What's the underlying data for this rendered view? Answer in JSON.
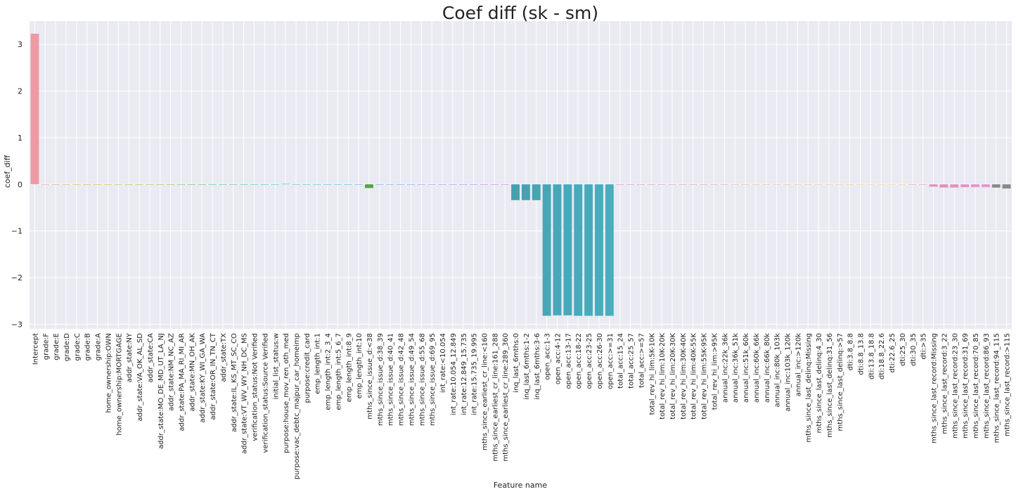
{
  "chart_data": {
    "type": "bar",
    "title": "Coef diff (sk - sm)",
    "xlabel": "Feature name",
    "ylabel": "coef_diff",
    "ylim": [
      -3.1,
      3.5
    ],
    "yticks": [
      -3,
      -2,
      -1,
      0,
      1,
      2,
      3
    ],
    "ytick_labels": [
      "−3",
      "−2",
      "−1",
      "0",
      "1",
      "2",
      "3"
    ],
    "grid": true,
    "legend": "none",
    "background": "#eaeaf2",
    "categories": [
      "Intercept",
      "grade:F",
      "grade:E",
      "grade:D",
      "grade:C",
      "grade:B",
      "grade:A",
      "home_ownership:OWN",
      "home_ownership:MORTGAGE",
      "addr_state:NY",
      "addr_state:VA_OK_AL_SD",
      "addr_state:CA",
      "addr_state:MO_DE_MD_UT_LA_NJ",
      "addr_state:NM_NC_AZ",
      "addr_state:PA_MA_RI_MI_AR",
      "addr_state:MN_OH_AK",
      "addr_state:KY_WI_GA_WA",
      "addr_state:OR_IN_TN_CT",
      "addr_state:TX",
      "addr_state:IL_KS_MT_SC_CO",
      "addr_state:VT_WV_WY_NH_DC_MS",
      "verification_status:Not Verified",
      "verification_status:Source Verified",
      "initial_list_status:w",
      "purpose:house_mov_ren_oth_med",
      "purpose:vac_debtc_majpur_car_homeimp",
      "purpose:credit_card",
      "emp_length_int:1",
      "emp_length_int:2_3_4",
      "emp_length_int:5_6_7",
      "emp_length_int:8_9",
      "emp_length_int:10",
      "mths_since_issue_d:<38",
      "mths_since_issue_d:38_39",
      "mths_since_issue_d:40_41",
      "mths_since_issue_d:42_48",
      "mths_since_issue_d:49_54",
      "mths_since_issue_d:55_68",
      "mths_since_issue_d:69_95",
      "int_rate:<10.054",
      "int_rate:10.054_12.849",
      "int_rate:12.849_15.735",
      "int_rate:15.735_19.995",
      "mths_since_earliest_cr_line:<160",
      "mths_since_earliest_cr_line:161_288",
      "mths_since_earliest_cr_line:289_360",
      "inq_last_6mths:0",
      "inq_last_6mths:1-2",
      "inq_last_6mths:3-6",
      "open_acc:1-3",
      "open_acc:4-12",
      "open_acc:13-17",
      "open_acc:18-22",
      "open_acc:23-25",
      "open_acc:26-30",
      "open_acc:>=31",
      "total_acc:15_24",
      "total_acc:25_57",
      "total_acc:>=57",
      "total_rev_hi_lim:5K-10K",
      "total_rev_hi_lim:10K-20K",
      "total_rev_hi_lim:20K-30K",
      "total_rev_hi_lim:30K-40K",
      "total_rev_hi_lim:40K-55K",
      "total_rev_hi_lim:55K-95K",
      "total_rev_hi_lim:>95K",
      "annual_inc:22k_36k",
      "annual_inc:36k_51k",
      "annual_inc:51k_60k",
      "annual_inc:60k_66k",
      "annual_inc:66k_80k",
      "annual_inc:80k_103k",
      "annual_inc:103k_120k",
      "annual_inc:>120k",
      "mths_since_last_delinq:Missing",
      "mths_since_last_delinq:4_30",
      "mths_since_last_delinq:31_56",
      "mths_since_last_delinq:>57",
      "dti:3.8_8.8",
      "dti:8.8_13.8",
      "dti:13.8_18.8",
      "dti:18.8_22.6",
      "dti:22.6_25",
      "dti:25_30",
      "dti:30_35",
      "dti:>35",
      "mths_since_last_record:Missing",
      "mths_since_last_record:3_22",
      "mths_since_last_record:23_30",
      "mths_since_last_record:31_69",
      "mths_since_last_record:70_85",
      "mths_since_last_record:86_93",
      "mths_since_last_record:94_115",
      "mths_since_last_record:>115"
    ],
    "values": [
      3.23,
      -0.01,
      -0.01,
      -0.01,
      -0.01,
      -0.01,
      -0.01,
      0.0,
      0.0,
      0.0,
      0.0,
      0.0,
      0.0,
      0.0,
      0.0,
      0.0,
      0.0,
      0.0,
      0.0,
      0.0,
      0.0,
      0.0,
      0.0,
      0.0,
      0.01,
      0.0,
      0.0,
      0.0,
      0.0,
      0.0,
      0.0,
      0.0,
      -0.08,
      0.0,
      0.0,
      0.0,
      0.0,
      0.0,
      0.0,
      0.0,
      0.0,
      0.0,
      0.0,
      0.0,
      0.0,
      0.0,
      -0.34,
      -0.34,
      -0.34,
      -2.82,
      -2.81,
      -2.81,
      -2.82,
      -2.82,
      -2.82,
      -2.82,
      0.0,
      0.0,
      0.0,
      0.0,
      0.0,
      0.0,
      0.0,
      0.0,
      0.0,
      0.0,
      0.0,
      0.0,
      0.0,
      0.0,
      0.0,
      0.0,
      0.0,
      0.0,
      0.0,
      0.0,
      0.0,
      0.0,
      0.0,
      0.0,
      0.0,
      0.0,
      0.0,
      0.0,
      0.0,
      0.0,
      -0.05,
      -0.07,
      -0.07,
      -0.06,
      -0.06,
      -0.06,
      -0.07,
      -0.09
    ],
    "colors": [
      "#ee9aa5",
      "#eda096",
      "#eca384",
      "#e8a76e",
      "#e2ac5c",
      "#dbaf4f",
      "#d2b247",
      "#c8b444",
      "#bcb644",
      "#afb944",
      "#a2bc44",
      "#93bf44",
      "#83c144",
      "#70c346",
      "#5ac54c",
      "#4cc05a",
      "#4ac06b",
      "#48c079",
      "#47c085",
      "#46c08f",
      "#46bf98",
      "#45bfa0",
      "#45bea8",
      "#44beaf",
      "#44bdb6",
      "#44bcbc",
      "#44bbc2",
      "#44bac8",
      "#45b8ce",
      "#47b6d4",
      "#4ab3da",
      "#4fb0e0",
      "#53a34a",
      "#5da6e8",
      "#64a2ec",
      "#6c9ef0",
      "#759af4",
      "#7e95f6",
      "#8891f8",
      "#928cf8",
      "#9c87f6",
      "#a583f4",
      "#ad7ff1",
      "#b47cee",
      "#bb79ea",
      "#c177e6",
      "#46a0b0",
      "#46a2b2",
      "#46a4b4",
      "#46a6b6",
      "#47a8b8",
      "#47a9b9",
      "#48aabb",
      "#48abbc",
      "#49acbd",
      "#49adbe",
      "#d67bd4",
      "#d97fcf",
      "#db83ca",
      "#dd88c5",
      "#df8cc0",
      "#e091bb",
      "#e195b6",
      "#e299b1",
      "#e39dac",
      "#e4a1a8",
      "#e5a5a4",
      "#e6a9a0",
      "#e7ad9c",
      "#e8b098",
      "#e9b394",
      "#eab691",
      "#ebb98e",
      "#ecbb8b",
      "#edbd88",
      "#eebf86",
      "#efc184",
      "#f0c382",
      "#f1c581",
      "#f2c780",
      "#f3c97f",
      "#f4cb7e",
      "#f5cc7d",
      "#f6cd7d",
      "#e58fb0",
      "#e48fb4",
      "#e48fb8",
      "#e490bc",
      "#e491c0",
      "#e492c4",
      "#e493c8",
      "#e494cc"
    ]
  }
}
